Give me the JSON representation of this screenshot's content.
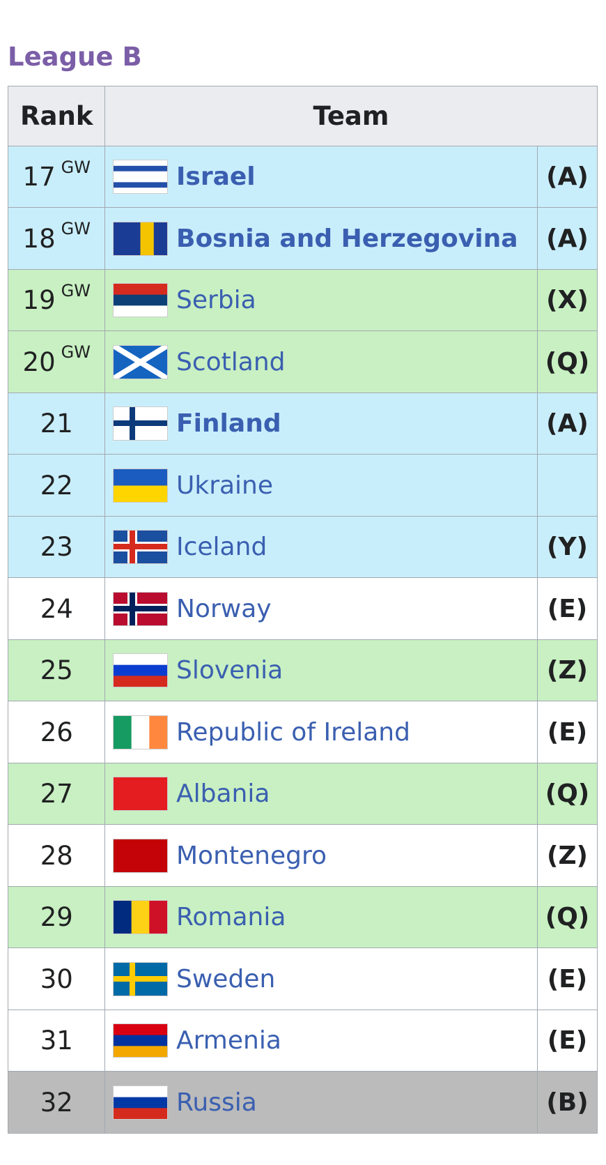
{
  "title": "League B",
  "table": {
    "headers": [
      "Rank",
      "Team"
    ],
    "rows": [
      {
        "rank": "17",
        "sup": "GW",
        "team": "Israel",
        "bold": true,
        "note": "(A)",
        "color": "#c9eefb"
      },
      {
        "rank": "18",
        "sup": "GW",
        "team": "Bosnia and Herzegovina",
        "bold": true,
        "note": "(A)",
        "color": "#c9eefb"
      },
      {
        "rank": "19",
        "sup": "GW",
        "team": "Serbia",
        "bold": false,
        "note": "(X)",
        "color": "#c8f0c2"
      },
      {
        "rank": "20",
        "sup": "GW",
        "team": "Scotland",
        "bold": false,
        "note": "(Q)",
        "color": "#c8f0c2"
      },
      {
        "rank": "21",
        "team": "Finland",
        "bold": true,
        "note": "(A)",
        "color": "#c9eefb"
      },
      {
        "rank": "22",
        "team": "Ukraine",
        "bold": false,
        "color": "#c9eefb"
      },
      {
        "rank": "23",
        "team": "Iceland",
        "bold": false,
        "note": "(Y)",
        "color": "#c9eefb"
      },
      {
        "rank": "24",
        "team": "Norway",
        "bold": false,
        "note": "(E)",
        "color": "#ffffff"
      },
      {
        "rank": "25",
        "team": "Slovenia",
        "bold": false,
        "note": "(Z)",
        "color": "#c8f0c2"
      },
      {
        "rank": "26",
        "team": "Republic of Ireland",
        "bold": false,
        "note": "(E)",
        "color": "#ffffff"
      },
      {
        "rank": "27",
        "team": "Albania",
        "bold": false,
        "note": "(Q)",
        "color": "#c8f0c2"
      },
      {
        "rank": "28",
        "team": "Montenegro",
        "bold": false,
        "note": "(Z)",
        "color": "#ffffff"
      },
      {
        "rank": "29",
        "team": "Romania",
        "bold": false,
        "note": "(Q)",
        "color": "#c8f0c2"
      },
      {
        "rank": "30",
        "team": "Sweden",
        "bold": false,
        "note": "(E)",
        "color": "#ffffff"
      },
      {
        "rank": "31",
        "team": "Armenia",
        "bold": false,
        "note": "(E)",
        "color": "#ffffff"
      },
      {
        "rank": "32",
        "team": "Russia",
        "bold": false,
        "note": "(B)",
        "color": "#bbbbbb"
      }
    ]
  }
}
